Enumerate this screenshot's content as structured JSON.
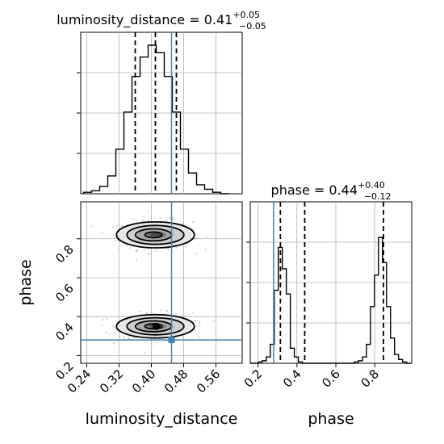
{
  "chart_data": [
    {
      "type": "histogram",
      "panel": "luminosity_distance marginal",
      "title": {
        "param": "luminosity_distance",
        "median": "0.41",
        "plus": "+0.05",
        "minus": "−0.05"
      },
      "xlim": [
        0.225,
        0.625
      ],
      "bin_edges": [
        0.232,
        0.252,
        0.272,
        0.292,
        0.312,
        0.332,
        0.352,
        0.372,
        0.392,
        0.412,
        0.432,
        0.452,
        0.472,
        0.492,
        0.512,
        0.532,
        0.552,
        0.572,
        0.592
      ],
      "heights": [
        0.01,
        0.02,
        0.05,
        0.12,
        0.3,
        0.55,
        0.79,
        0.92,
        1.0,
        0.95,
        0.79,
        0.55,
        0.3,
        0.14,
        0.06,
        0.03,
        0.01,
        0.0
      ],
      "quantile_lines": [
        0.36,
        0.41,
        0.462
      ],
      "truth": 0.45,
      "grid": true
    },
    {
      "type": "scatter",
      "panel": "phase vs luminosity_distance",
      "xlabel": "luminosity_distance",
      "ylabel": "phase",
      "xlim": [
        0.225,
        0.625
      ],
      "ylim": [
        0.16,
        0.99
      ],
      "x_ticks": [
        "0.24",
        "0.32",
        "0.40",
        "0.48",
        "0.56"
      ],
      "x_tick_values": [
        0.24,
        0.32,
        0.4,
        0.48,
        0.56
      ],
      "y_ticks": [
        "0.2",
        "0.4",
        "0.6",
        "0.8"
      ],
      "y_tick_values": [
        0.2,
        0.4,
        0.6,
        0.8
      ],
      "modes": [
        {
          "center": [
            0.41,
            0.82
          ],
          "sx": 0.048,
          "sy": 0.05
        },
        {
          "center": [
            0.41,
            0.35
          ],
          "sx": 0.048,
          "sy": 0.045
        }
      ],
      "truth": [
        0.45,
        0.28
      ],
      "grid": true
    },
    {
      "type": "histogram",
      "panel": "phase marginal",
      "title": {
        "param": "phase",
        "median": "0.44",
        "plus": "+0.40",
        "minus": "−0.12"
      },
      "xlabel": "phase",
      "xlim": [
        0.16,
        0.99
      ],
      "x_ticks": [
        "0.2",
        "0.4",
        "0.6",
        "0.8"
      ],
      "x_tick_values": [
        0.2,
        0.4,
        0.6,
        0.8
      ],
      "bin_edges": [
        0.16,
        0.1806,
        0.2012,
        0.2218,
        0.2424,
        0.263,
        0.2836,
        0.3042,
        0.3248,
        0.3454,
        0.366,
        0.3866,
        0.4072,
        0.4278,
        0.4484,
        0.469,
        0.4896,
        0.5102,
        0.5308,
        0.5514,
        0.572,
        0.5926,
        0.6132,
        0.6338,
        0.6544,
        0.675,
        0.6956,
        0.7162,
        0.7368,
        0.7574,
        0.778,
        0.7986,
        0.8192,
        0.8398,
        0.8604,
        0.881,
        0.9016,
        0.9222,
        0.9428,
        0.9634,
        0.984
      ],
      "heights": [
        0.0,
        0.0,
        0.01,
        0.02,
        0.05,
        0.15,
        0.58,
        0.92,
        0.75,
        0.55,
        0.12,
        0.05,
        0.01,
        0.0,
        0.0,
        0.0,
        0.0,
        0.0,
        0.0,
        0.0,
        0.0,
        0.0,
        0.0,
        0.0,
        0.0,
        0.0,
        0.01,
        0.02,
        0.05,
        0.15,
        0.45,
        0.7,
        1.0,
        0.8,
        0.45,
        0.2,
        0.07,
        0.03,
        0.01,
        0.0
      ],
      "quantile_lines": [
        0.315,
        0.44,
        0.845
      ],
      "truth": 0.28,
      "grid": true
    }
  ],
  "colors": {
    "truth": "#4682b4",
    "hist": "#000000",
    "grid": "#b0b0b0",
    "points": "#bdbdbd"
  }
}
